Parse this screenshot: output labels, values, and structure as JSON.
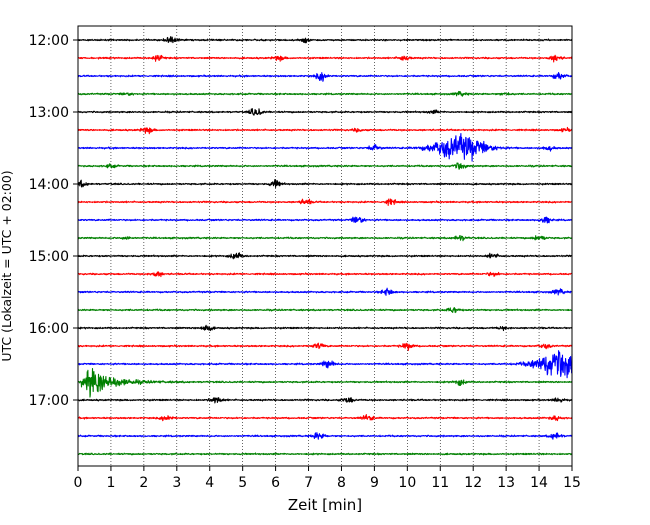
{
  "chart_data": {
    "type": "line",
    "title": "",
    "xlabel": "Zeit  [min]",
    "ylabel": "UTC (Lokalzeit = UTC + 02:00)",
    "xlim": [
      0,
      15
    ],
    "x_ticks": [
      0,
      1,
      2,
      3,
      4,
      5,
      6,
      7,
      8,
      9,
      10,
      11,
      12,
      13,
      14,
      15
    ],
    "y_ticks": [
      "12:00",
      "13:00",
      "14:00",
      "15:00",
      "16:00",
      "17:00"
    ],
    "grid": "vertical-dotted",
    "color_cycle": [
      "#000000",
      "#ff0000",
      "#0000ff",
      "#008000"
    ],
    "traces": [
      {
        "start": "12:00",
        "color": "#000000",
        "events": [
          [
            2.8,
            5
          ],
          [
            6.9,
            3
          ]
        ]
      },
      {
        "start": "12:15",
        "color": "#ff0000",
        "events": [
          [
            2.4,
            4
          ],
          [
            6.1,
            3
          ],
          [
            9.9,
            4
          ],
          [
            14.5,
            5
          ]
        ]
      },
      {
        "start": "12:30",
        "color": "#0000ff",
        "events": [
          [
            7.4,
            6
          ],
          [
            14.6,
            5
          ]
        ]
      },
      {
        "start": "12:45",
        "color": "#008000",
        "events": [
          [
            1.5,
            2
          ],
          [
            11.6,
            3
          ],
          [
            13.0,
            2
          ]
        ]
      },
      {
        "start": "13:00",
        "color": "#000000",
        "events": [
          [
            5.4,
            6
          ],
          [
            10.8,
            2
          ]
        ]
      },
      {
        "start": "13:15",
        "color": "#ff0000",
        "events": [
          [
            2.1,
            4
          ],
          [
            8.5,
            2
          ],
          [
            14.8,
            2
          ]
        ]
      },
      {
        "start": "13:30",
        "color": "#0000ff",
        "events": [
          [
            9.0,
            5
          ],
          [
            11.6,
            18
          ],
          [
            14.3,
            3
          ]
        ]
      },
      {
        "start": "13:45",
        "color": "#008000",
        "events": [
          [
            1.0,
            2
          ],
          [
            11.6,
            5
          ]
        ]
      },
      {
        "start": "14:00",
        "color": "#000000",
        "events": [
          [
            0.1,
            4
          ],
          [
            6.0,
            5
          ]
        ]
      },
      {
        "start": "14:15",
        "color": "#ff0000",
        "events": [
          [
            6.9,
            4
          ],
          [
            9.5,
            4
          ]
        ]
      },
      {
        "start": "14:30",
        "color": "#0000ff",
        "events": [
          [
            8.5,
            6
          ],
          [
            14.2,
            5
          ]
        ]
      },
      {
        "start": "14:45",
        "color": "#008000",
        "events": [
          [
            1.5,
            2
          ],
          [
            11.6,
            4
          ],
          [
            14.0,
            4
          ]
        ]
      },
      {
        "start": "15:00",
        "color": "#000000",
        "events": [
          [
            4.8,
            5
          ],
          [
            12.6,
            3
          ]
        ]
      },
      {
        "start": "15:15",
        "color": "#ff0000",
        "events": [
          [
            2.4,
            4
          ],
          [
            12.6,
            3
          ]
        ]
      },
      {
        "start": "15:30",
        "color": "#0000ff",
        "events": [
          [
            9.4,
            5
          ],
          [
            14.6,
            4
          ]
        ]
      },
      {
        "start": "15:45",
        "color": "#008000",
        "events": [
          [
            11.4,
            4
          ]
        ]
      },
      {
        "start": "16:00",
        "color": "#000000",
        "events": [
          [
            3.9,
            5
          ],
          [
            12.9,
            2
          ]
        ]
      },
      {
        "start": "16:15",
        "color": "#ff0000",
        "events": [
          [
            7.3,
            4
          ],
          [
            10.0,
            5
          ],
          [
            14.2,
            3
          ]
        ]
      },
      {
        "start": "16:30",
        "color": "#0000ff",
        "events": [
          [
            7.6,
            6
          ],
          [
            14.75,
            22
          ]
        ]
      },
      {
        "start": "16:45",
        "color": "#008000",
        "events": [
          [
            0.25,
            28
          ],
          [
            11.6,
            4
          ]
        ]
      },
      {
        "start": "17:00",
        "color": "#000000",
        "events": [
          [
            4.2,
            5
          ],
          [
            8.2,
            4
          ],
          [
            14.6,
            3
          ]
        ]
      },
      {
        "start": "17:15",
        "color": "#ff0000",
        "events": [
          [
            2.7,
            4
          ],
          [
            8.8,
            4
          ],
          [
            14.5,
            3
          ]
        ]
      },
      {
        "start": "17:30",
        "color": "#0000ff",
        "events": [
          [
            7.3,
            5
          ],
          [
            14.5,
            5
          ]
        ]
      },
      {
        "start": "17:45",
        "color": "#008000",
        "events": []
      }
    ]
  }
}
